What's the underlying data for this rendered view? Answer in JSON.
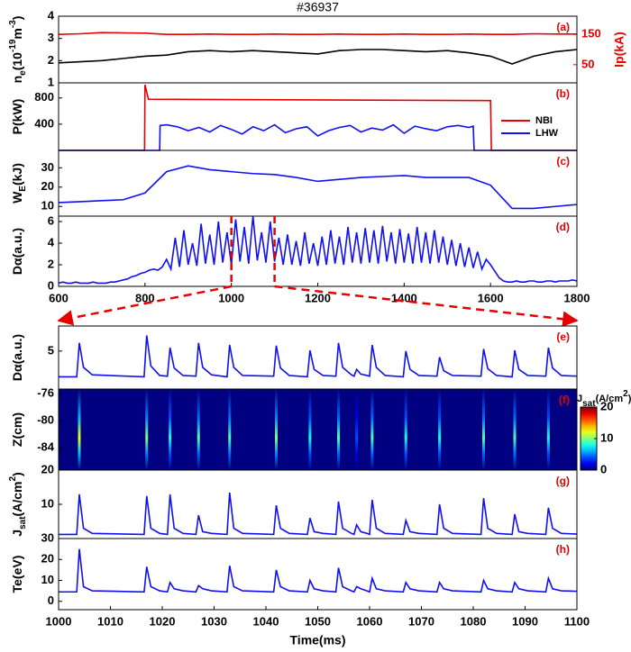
{
  "chart_data": [
    {
      "type": "line",
      "title": "#36937",
      "annotation": "(a)",
      "ylabel": [
        "n",
        "e",
        "(10",
        "-19",
        "m",
        "-3",
        ")"
      ],
      "y2label": "Ip(kA)",
      "xlim": [
        600,
        1800
      ],
      "ylim": [
        1,
        4
      ],
      "yticks": [
        1,
        2,
        3,
        4
      ],
      "y2lim": [
        -10,
        210
      ],
      "y2ticks": [
        50,
        150
      ],
      "x": [
        600,
        650,
        700,
        750,
        800,
        850,
        900,
        950,
        1000,
        1050,
        1100,
        1150,
        1200,
        1250,
        1300,
        1350,
        1400,
        1450,
        1500,
        1550,
        1600,
        1650,
        1700,
        1750,
        1800
      ],
      "series": [
        {
          "color": "#000000",
          "values": [
            1.9,
            1.95,
            2.0,
            2.1,
            2.2,
            2.25,
            2.4,
            2.45,
            2.4,
            2.45,
            2.4,
            2.35,
            2.3,
            2.45,
            2.5,
            2.5,
            2.45,
            2.4,
            2.45,
            2.35,
            2.2,
            1.85,
            2.2,
            2.4,
            2.5
          ]
        },
        {
          "color": "#e60000",
          "axis": "y2",
          "values": [
            150,
            152,
            156,
            155,
            154,
            150,
            150,
            151,
            150,
            150,
            151,
            150,
            150,
            151,
            150,
            150,
            151,
            150,
            150,
            151,
            150,
            150,
            152,
            151,
            151
          ]
        }
      ]
    },
    {
      "type": "line",
      "annotation": "(b)",
      "ylabel": [
        "P(kW)"
      ],
      "xlim": [
        600,
        1800
      ],
      "ylim": [
        0,
        1030
      ],
      "yticks": [
        400,
        800
      ],
      "legend": "right",
      "series": [
        {
          "name": "NBI",
          "color": "#e60000",
          "x": [
            600,
            799,
            800,
            808,
            1600,
            1602,
            1800
          ],
          "values": [
            0,
            0,
            1000,
            780,
            760,
            0,
            0
          ]
        },
        {
          "name": "LHW",
          "color": "#1010f0",
          "x": [
            600,
            834,
            835,
            850,
            875,
            900,
            925,
            950,
            975,
            1000,
            1025,
            1050,
            1075,
            1100,
            1125,
            1150,
            1175,
            1200,
            1225,
            1250,
            1275,
            1300,
            1325,
            1350,
            1375,
            1400,
            1425,
            1450,
            1475,
            1500,
            1525,
            1550,
            1560,
            1562,
            1800
          ],
          "values": [
            0,
            0,
            380,
            390,
            360,
            300,
            350,
            280,
            380,
            320,
            250,
            360,
            300,
            390,
            270,
            330,
            360,
            220,
            300,
            350,
            380,
            280,
            340,
            310,
            390,
            260,
            370,
            330,
            300,
            360,
            380,
            350,
            370,
            0,
            0
          ]
        }
      ]
    },
    {
      "type": "line",
      "annotation": "(c)",
      "ylabel": [
        "W",
        "E",
        "(kJ)"
      ],
      "xlim": [
        600,
        1800
      ],
      "ylim": [
        5,
        39
      ],
      "yticks": [
        10,
        20,
        30
      ],
      "x": [
        600,
        650,
        700,
        750,
        800,
        850,
        900,
        950,
        1000,
        1050,
        1100,
        1150,
        1200,
        1250,
        1300,
        1350,
        1400,
        1450,
        1500,
        1550,
        1600,
        1650,
        1700,
        1750,
        1800
      ],
      "series": [
        {
          "color": "#1010f0",
          "values": [
            12,
            12.5,
            13,
            13.5,
            17,
            28,
            31,
            29,
            28,
            27,
            26.5,
            25,
            23,
            24,
            25,
            25.5,
            26,
            25,
            25,
            25,
            21,
            9,
            9,
            10,
            11
          ]
        }
      ]
    },
    {
      "type": "line",
      "annotation": "(d)",
      "ylabel": [
        "Dα(a.u.)"
      ],
      "xlim": [
        600,
        1800
      ],
      "ylim": [
        0,
        6.5
      ],
      "yticks": [
        0,
        2,
        4,
        6
      ],
      "xticks": [
        600,
        800,
        1000,
        1200,
        1400,
        1600,
        1800
      ],
      "highlight_x": [
        1000,
        1100
      ],
      "x": [
        600,
        610,
        620,
        630,
        640,
        650,
        660,
        670,
        680,
        690,
        700,
        710,
        720,
        730,
        740,
        750,
        760,
        770,
        780,
        790,
        800,
        810,
        820,
        830,
        840,
        850,
        860,
        870,
        880,
        890,
        900,
        910,
        920,
        930,
        940,
        950,
        960,
        970,
        980,
        990,
        1000,
        1010,
        1020,
        1030,
        1040,
        1050,
        1060,
        1070,
        1080,
        1090,
        1100,
        1110,
        1120,
        1130,
        1140,
        1150,
        1160,
        1170,
        1180,
        1190,
        1200,
        1210,
        1220,
        1230,
        1240,
        1250,
        1260,
        1270,
        1280,
        1290,
        1300,
        1310,
        1320,
        1330,
        1340,
        1350,
        1360,
        1370,
        1380,
        1390,
        1400,
        1410,
        1420,
        1430,
        1440,
        1450,
        1460,
        1470,
        1480,
        1490,
        1500,
        1510,
        1520,
        1530,
        1540,
        1550,
        1560,
        1570,
        1580,
        1590,
        1600,
        1610,
        1620,
        1630,
        1640,
        1650,
        1660,
        1670,
        1680,
        1690,
        1700,
        1710,
        1720,
        1730,
        1740,
        1750,
        1760,
        1770,
        1780,
        1790,
        1800
      ],
      "series": [
        {
          "color": "#1010f0",
          "values": [
            0.3,
            0.4,
            0.3,
            0.3,
            0.4,
            0.3,
            0.3,
            0.3,
            0.4,
            0.3,
            0.3,
            0.3,
            0.4,
            0.4,
            0.5,
            0.6,
            0.7,
            0.9,
            1.0,
            1.2,
            1.3,
            1.5,
            1.6,
            1.5,
            1.8,
            2.5,
            1.6,
            4.5,
            1.8,
            5.2,
            2.0,
            4.0,
            1.9,
            5.8,
            2.1,
            4.8,
            2.0,
            6.0,
            2.2,
            5.0,
            2.0,
            6.2,
            2.3,
            5.5,
            2.1,
            6.5,
            2.4,
            5.0,
            2.2,
            6.0,
            2.3,
            4.5,
            2.0,
            4.8,
            2.0,
            4.2,
            1.9,
            5.0,
            2.1,
            4.0,
            1.9,
            4.6,
            2.0,
            5.2,
            2.1,
            4.6,
            2.0,
            5.5,
            2.2,
            5.0,
            2.1,
            5.4,
            2.2,
            5.2,
            2.1,
            5.6,
            2.3,
            5.0,
            2.1,
            5.3,
            2.2,
            4.9,
            2.1,
            5.5,
            2.2,
            5.0,
            2.1,
            5.2,
            2.2,
            4.6,
            2.0,
            4.3,
            1.9,
            4.0,
            1.8,
            3.6,
            1.7,
            3.2,
            1.6,
            2.5,
            2.0,
            1.4,
            0.8,
            0.5,
            0.4,
            0.4,
            0.5,
            0.4,
            0.4,
            0.5,
            0.5,
            0.4,
            0.4,
            0.5,
            0.5,
            0.4,
            0.5,
            0.5,
            0.5,
            0.6,
            0.5
          ]
        }
      ]
    },
    {
      "type": "line",
      "annotation": "(e)",
      "ylabel": [
        "Dα(a.u.)"
      ],
      "xlim": [
        1000,
        1100
      ],
      "ylim": [
        -0.6,
        8.7
      ],
      "yticks": [
        5
      ],
      "x": [
        1000,
        1003.5,
        1004,
        1004.8,
        1006.5,
        1016.5,
        1017,
        1017.8,
        1019.5,
        1021,
        1021.5,
        1022.3,
        1024,
        1026.5,
        1027,
        1027.8,
        1029.5,
        1032.5,
        1033,
        1033.8,
        1035.5,
        1041.5,
        1042,
        1042.8,
        1044.5,
        1048,
        1048.5,
        1049.3,
        1051,
        1053.5,
        1054,
        1054.8,
        1056.5,
        1057,
        1057.5,
        1058.3,
        1059.5,
        1060,
        1060.5,
        1061.3,
        1063,
        1066.5,
        1067,
        1067.8,
        1069.5,
        1073,
        1073.5,
        1074.3,
        1076,
        1081.5,
        1082,
        1082.8,
        1084.5,
        1087.5,
        1088,
        1088.8,
        1090.5,
        1094,
        1094.5,
        1095.3,
        1097,
        1100
      ],
      "series": [
        {
          "color": "#1010f0",
          "values": [
            1.2,
            1.2,
            6.2,
            2.6,
            1.5,
            1.2,
            7.3,
            2.8,
            1.4,
            1.3,
            5.5,
            2.5,
            1.4,
            1.3,
            6.2,
            2.6,
            1.5,
            1.2,
            5.9,
            2.6,
            1.4,
            1.3,
            5.8,
            2.5,
            1.4,
            1.2,
            5.1,
            2.3,
            1.4,
            1.3,
            6.2,
            2.6,
            1.5,
            1.3,
            2.3,
            1.6,
            1.4,
            1.3,
            5.9,
            2.6,
            1.4,
            1.2,
            5.0,
            2.3,
            1.4,
            1.3,
            4.1,
            2.1,
            1.4,
            1.3,
            5.3,
            2.4,
            1.4,
            1.2,
            5.1,
            2.3,
            1.4,
            1.3,
            5.5,
            2.5,
            1.4,
            1.3
          ]
        }
      ]
    },
    {
      "type": "heatmap",
      "annotation": "(f)",
      "ylabel": [
        "Z(cm)"
      ],
      "xlim": [
        1000,
        1100
      ],
      "ylim": [
        -87.3,
        -75.3
      ],
      "yticks": [
        -76,
        -80,
        -84
      ],
      "x": [
        1004,
        1017,
        1021.5,
        1027,
        1033,
        1042,
        1048.5,
        1054,
        1057.5,
        1060.5,
        1067,
        1073.5,
        1082,
        1088,
        1094.5
      ],
      "values": [
        12,
        10,
        8,
        9,
        9,
        10,
        8,
        9,
        4,
        9,
        8,
        8,
        9,
        9,
        8
      ],
      "clim": [
        0,
        20
      ],
      "cticks": [
        0,
        10,
        20
      ],
      "clabel": [
        "J",
        "sat",
        "(A/cm",
        "2",
        ")"
      ]
    },
    {
      "type": "line",
      "annotation": "(g)",
      "ylabel": [
        "J",
        "sat",
        "(A/cm",
        "2",
        ")"
      ],
      "xlim": [
        1000,
        1100
      ],
      "ylim": [
        0,
        20
      ],
      "yticks": [
        10,
        20
      ],
      "x": [
        1000,
        1003.5,
        1004,
        1004.8,
        1006.5,
        1016.5,
        1017,
        1017.8,
        1019.5,
        1021,
        1021.5,
        1022.3,
        1024,
        1026.5,
        1027,
        1027.8,
        1029.5,
        1032.5,
        1033,
        1033.8,
        1035.5,
        1041.5,
        1042,
        1042.8,
        1044.5,
        1048,
        1048.5,
        1049.3,
        1051,
        1053.5,
        1054,
        1054.8,
        1056.5,
        1057,
        1057.5,
        1058.3,
        1059.5,
        1060,
        1060.5,
        1061.3,
        1063,
        1066.5,
        1067,
        1067.8,
        1069.5,
        1073,
        1073.5,
        1074.3,
        1076,
        1081.5,
        1082,
        1082.8,
        1084.5,
        1087.5,
        1088,
        1088.8,
        1090.5,
        1094,
        1094.5,
        1095.3,
        1097,
        1100
      ],
      "series": [
        {
          "color": "#1010f0",
          "values": [
            1.2,
            1.2,
            12.9,
            3.0,
            1.5,
            1.2,
            12.4,
            3.0,
            1.5,
            1.2,
            12.9,
            3.0,
            1.5,
            1.2,
            6.8,
            2.0,
            1.5,
            1.2,
            13.4,
            3.0,
            1.5,
            1.2,
            9.7,
            3.0,
            1.5,
            1.2,
            6.0,
            2.0,
            1.5,
            1.2,
            10.8,
            3.0,
            1.5,
            1.2,
            4.0,
            2.0,
            1.5,
            1.2,
            11.3,
            3.0,
            1.5,
            1.2,
            5.3,
            2.0,
            1.5,
            1.2,
            10.0,
            3.0,
            1.5,
            1.2,
            11.8,
            3.0,
            1.5,
            1.2,
            7.1,
            2.0,
            1.5,
            1.2,
            9.0,
            3.0,
            1.5,
            1.3
          ]
        }
      ]
    },
    {
      "type": "line",
      "annotation": "(h)",
      "ylabel": [
        "Te(eV)"
      ],
      "xlabel": "Time(ms)",
      "xlim": [
        1000,
        1100
      ],
      "ylim": [
        -4,
        30
      ],
      "yticks": [
        0,
        10,
        20,
        30
      ],
      "xticks": [
        1000,
        1010,
        1020,
        1030,
        1040,
        1050,
        1060,
        1070,
        1080,
        1090,
        1100
      ],
      "x": [
        1000,
        1003.5,
        1004,
        1004.8,
        1006.5,
        1016.5,
        1017,
        1017.8,
        1019.5,
        1021,
        1021.5,
        1022.3,
        1024,
        1026.5,
        1027,
        1027.8,
        1029.5,
        1032.5,
        1033,
        1033.8,
        1035.5,
        1041.5,
        1042,
        1042.8,
        1044.5,
        1048,
        1048.5,
        1049.3,
        1051,
        1053.5,
        1054,
        1054.8,
        1056.5,
        1057,
        1057.5,
        1058.3,
        1059.5,
        1060,
        1060.5,
        1061.3,
        1063,
        1066.5,
        1067,
        1067.8,
        1069.5,
        1073,
        1073.5,
        1074.3,
        1076,
        1081.5,
        1082,
        1082.8,
        1084.5,
        1087.5,
        1088,
        1088.8,
        1090.5,
        1094,
        1094.5,
        1095.3,
        1097,
        1100
      ],
      "series": [
        {
          "color": "#1010f0",
          "values": [
            4.5,
            4.5,
            25,
            7,
            5,
            4.5,
            16.5,
            7,
            5,
            4.5,
            9,
            6,
            5,
            4.5,
            7.5,
            6,
            5,
            4.5,
            17,
            7,
            5,
            4.5,
            15,
            7,
            5,
            4.5,
            10,
            6,
            5,
            4.5,
            16,
            7,
            5,
            4.5,
            7,
            6,
            5,
            4.5,
            11,
            6,
            5,
            4.5,
            9,
            6,
            5,
            4.5,
            9,
            6,
            5,
            4.5,
            10,
            6,
            5,
            4.5,
            9,
            6,
            5,
            4.5,
            11,
            6,
            5,
            4.8
          ]
        }
      ]
    }
  ]
}
